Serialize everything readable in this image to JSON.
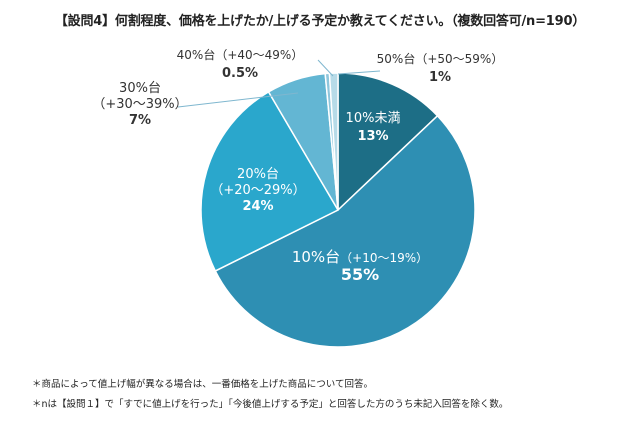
{
  "title": "【設問4】何割程度、価格を上げたか/上げる予定か教えてください。（複数回答可/n=190）",
  "chart_data": {
    "type": "pie",
    "title": "【設問4】何割程度、価格を上げたか/上げる予定か教えてください。（複数回答可/n=190）",
    "slices": [
      {
        "label": "10%未満",
        "range": "",
        "pct": "13%",
        "value": 13,
        "color": "#1d6e86"
      },
      {
        "label": "10%台",
        "range": "（+10〜19%）",
        "pct": "55%",
        "value": 55,
        "color": "#2e8fb3"
      },
      {
        "label": "20%台",
        "range": "（+20〜29%）",
        "pct": "24%",
        "value": 24,
        "color": "#2aa7cc"
      },
      {
        "label": "30%台",
        "range": "（+30〜39%）",
        "pct": "7%",
        "value": 7,
        "color": "#63b6d3"
      },
      {
        "label": "40%台",
        "range": "（+40〜49%）",
        "pct": "0.5%",
        "value": 0.5,
        "color": "#8ec6dc"
      },
      {
        "label": "50%台",
        "range": "（+50〜59%）",
        "pct": "1%",
        "value": 1,
        "color": "#b7dbe8"
      }
    ]
  },
  "notes": [
    "＊商品によって値上げ幅が異なる場合は、一番価格を上げた商品について回答。",
    "＊nは【設問１】で「すでに値上げを行った」「今後値上げする予定」と回答した方のうち未記入回答を除く数。"
  ]
}
